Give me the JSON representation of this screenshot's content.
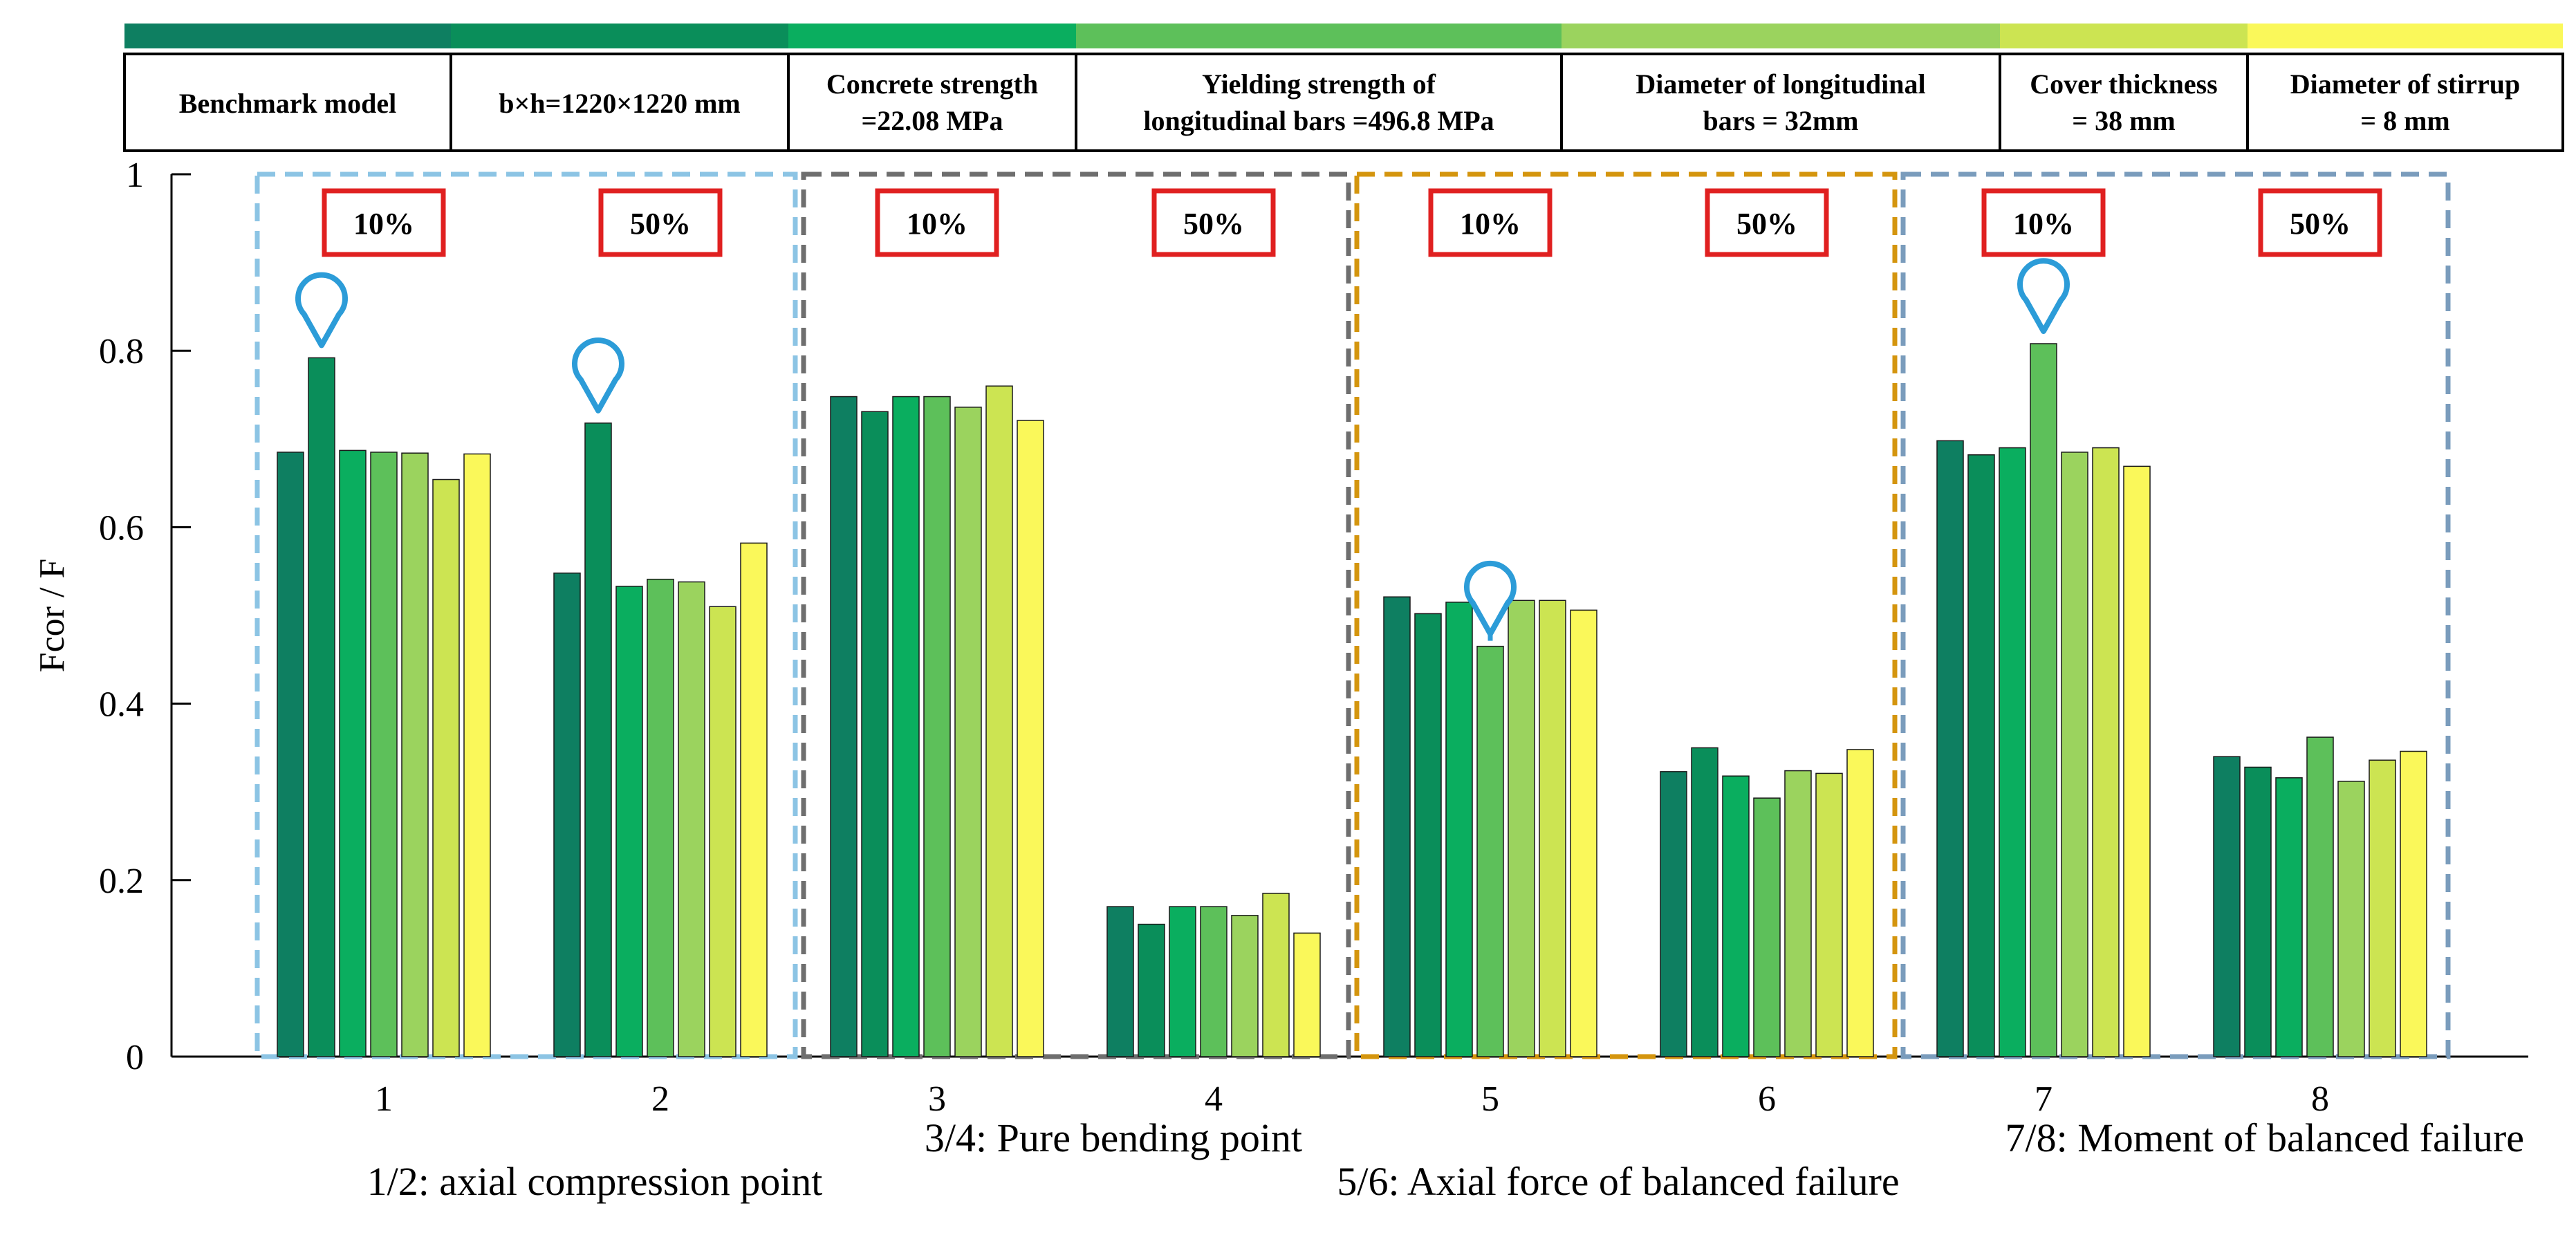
{
  "chart_data": {
    "type": "bar",
    "title": "",
    "xlabel": "",
    "ylabel": "Fcor / F",
    "ylim": [
      0,
      1
    ],
    "yticks": [
      0,
      0.2,
      0.4,
      0.6,
      0.8,
      1
    ],
    "ytick_labels": [
      "0",
      "0.2",
      "0.4",
      "0.6",
      "0.8",
      "1"
    ],
    "grid": false,
    "categories": [
      "1",
      "2",
      "3",
      "4",
      "5",
      "6",
      "7",
      "8"
    ],
    "series": [
      {
        "name": "Benchmark model",
        "color": "#0E7F61",
        "values": [
          0.685,
          0.548,
          0.748,
          0.17,
          0.521,
          0.323,
          0.698,
          0.34
        ]
      },
      {
        "name": "b×h=1220×1220 mm",
        "color": "#0A8E5A",
        "values": [
          0.792,
          0.718,
          0.731,
          0.15,
          0.502,
          0.35,
          0.682,
          0.328
        ]
      },
      {
        "name": "Concrete strength =22.08 MPa",
        "color": "#0AAE5F",
        "values": [
          0.687,
          0.533,
          0.748,
          0.17,
          0.515,
          0.318,
          0.69,
          0.316
        ]
      },
      {
        "name": "Yielding strength of longitudinal bars =496.8 MPa",
        "color": "#5DC05A",
        "values": [
          0.685,
          0.541,
          0.748,
          0.17,
          0.465,
          0.293,
          0.808,
          0.362
        ]
      },
      {
        "name": "Diameter of longitudinal bars = 32mm",
        "color": "#9BD35E",
        "values": [
          0.684,
          0.538,
          0.736,
          0.16,
          0.517,
          0.324,
          0.685,
          0.312
        ]
      },
      {
        "name": "Cover thickness = 38 mm",
        "color": "#CCE452",
        "values": [
          0.654,
          0.51,
          0.76,
          0.185,
          0.517,
          0.321,
          0.69,
          0.336
        ]
      },
      {
        "name": "Diameter of stirrup = 8 mm",
        "color": "#FAF85A",
        "values": [
          0.683,
          0.582,
          0.721,
          0.14,
          0.506,
          0.348,
          0.669,
          0.346
        ]
      }
    ],
    "legend_header": [
      {
        "line1": "Benchmark model",
        "line2": "",
        "color": "#0E7F61"
      },
      {
        "line1": "b×h=1220×1220 mm",
        "line2": "",
        "color": "#0A8E5A"
      },
      {
        "line1": "Concrete strength",
        "line2": "=22.08 MPa",
        "color": "#0AAE5F"
      },
      {
        "line1": "Yielding strength of",
        "line2": "longitudinal bars =496.8 MPa",
        "color": "#5DC05A"
      },
      {
        "line1": "Diameter of longitudinal",
        "line2": "bars = 32mm",
        "color": "#9BD35E"
      },
      {
        "line1": "Cover thickness",
        "line2": "= 38 mm",
        "color": "#CCE452"
      },
      {
        "line1": "Diameter of stirrup",
        "line2": "= 8 mm",
        "color": "#FAF85A"
      }
    ],
    "percent_labels": [
      "10%",
      "50%",
      "10%",
      "50%",
      "10%",
      "50%",
      "10%",
      "50%"
    ],
    "group_boxes": [
      {
        "groups": [
          1,
          2
        ],
        "color": "#8CC4E4"
      },
      {
        "groups": [
          3,
          4
        ],
        "color": "#6E6E6E"
      },
      {
        "groups": [
          5,
          6
        ],
        "color": "#D4950E"
      },
      {
        "groups": [
          7,
          8
        ],
        "color": "#7A9CBC"
      }
    ],
    "markers": [
      {
        "group": 1,
        "series_index": 1,
        "color": "#2C9CD8"
      },
      {
        "group": 2,
        "series_index": 1,
        "color": "#2C9CD8"
      },
      {
        "group": 5,
        "series_index": 3,
        "color": "#2C9CD8"
      },
      {
        "group": 7,
        "series_index": 3,
        "color": "#2C9CD8"
      }
    ],
    "annotations": [
      "3/4: Pure bending point",
      "7/8: Moment of balanced failure",
      "1/2: axial compression point",
      "5/6: Axial force of balanced failure"
    ]
  }
}
